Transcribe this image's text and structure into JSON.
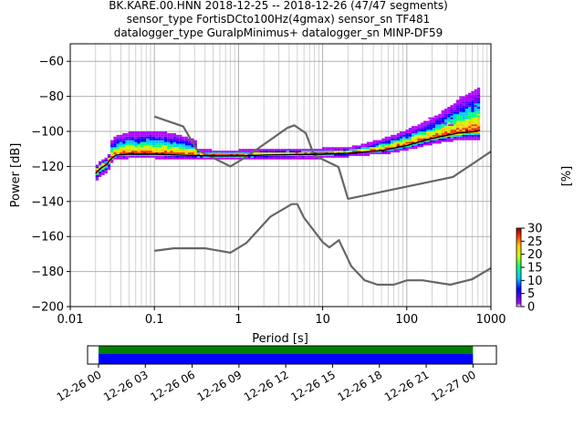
{
  "chart_data": {
    "type": "heatmap",
    "title_lines": [
      "BK.KARE.00.HNN   2018-12-25 -- 2018-12-26  (47/47 segments)",
      "sensor_type FortisDCto100Hz(4gmax) sensor_sn TF481",
      "datalogger_type GuralpMinimus+ datalogger_sn MINP-DF59"
    ],
    "xlabel": "Period [s]",
    "ylabel": "Power [dB]",
    "x_scale": "log",
    "xlim": [
      0.01,
      1000
    ],
    "ylim": [
      -200,
      -50
    ],
    "x_ticks": [
      {
        "value": 0.01,
        "label": "0.01"
      },
      {
        "value": 0.1,
        "label": "0.1"
      },
      {
        "value": 1,
        "label": "1"
      },
      {
        "value": 10,
        "label": "10"
      },
      {
        "value": 100,
        "label": "100"
      },
      {
        "value": 1000,
        "label": "1000"
      }
    ],
    "y_ticks": [
      {
        "value": -60,
        "label": "−60"
      },
      {
        "value": -80,
        "label": "−80"
      },
      {
        "value": -100,
        "label": "−100"
      },
      {
        "value": -120,
        "label": "−120"
      },
      {
        "value": -140,
        "label": "−140"
      },
      {
        "value": -160,
        "label": "−160"
      },
      {
        "value": -180,
        "label": "−180"
      },
      {
        "value": -200,
        "label": "−200"
      }
    ],
    "grid": true,
    "colorbar": {
      "label": "[%]",
      "range": [
        0,
        30
      ],
      "ticks": [
        {
          "value": 0,
          "label": "0"
        },
        {
          "value": 5,
          "label": "5"
        },
        {
          "value": 10,
          "label": "10"
        },
        {
          "value": 15,
          "label": "15"
        },
        {
          "value": 20,
          "label": "20"
        },
        {
          "value": 25,
          "label": "25"
        },
        {
          "value": 30,
          "label": "30"
        }
      ]
    },
    "noise_models": [
      {
        "points": [
          [
            0.1,
            -91.5
          ],
          [
            0.22,
            -97.2
          ],
          [
            0.32,
            -110.5
          ],
          [
            0.8,
            -120
          ],
          [
            1.2,
            -114.9
          ],
          [
            3.8,
            -98
          ],
          [
            4.6,
            -96.5
          ],
          [
            6.3,
            -101
          ],
          [
            7.9,
            -113.6
          ],
          [
            15.4,
            -120.3
          ],
          [
            20,
            -138.5
          ],
          [
            354,
            -126
          ],
          [
            1000,
            -111.5
          ]
        ]
      },
      {
        "points": [
          [
            0.1,
            -168.2
          ],
          [
            0.17,
            -166.7
          ],
          [
            0.4,
            -166.7
          ],
          [
            0.8,
            -169.2
          ],
          [
            1.24,
            -163.7
          ],
          [
            2.4,
            -148.6
          ],
          [
            4.3,
            -141.5
          ],
          [
            5,
            -141.5
          ],
          [
            6,
            -149.2
          ],
          [
            10,
            -163.2
          ],
          [
            12,
            -166.2
          ],
          [
            15.6,
            -162.1
          ],
          [
            21.9,
            -177
          ],
          [
            31.6,
            -185
          ],
          [
            45,
            -187.5
          ],
          [
            70,
            -187.5
          ],
          [
            101,
            -185
          ],
          [
            154,
            -185
          ],
          [
            328,
            -187.5
          ],
          [
            600,
            -184.4
          ],
          [
            1000,
            -178
          ]
        ]
      }
    ],
    "mean_trace": [
      [
        0.02,
        -124
      ],
      [
        0.023,
        -121
      ],
      [
        0.027,
        -119
      ],
      [
        0.03,
        -116
      ],
      [
        0.035,
        -113.5
      ],
      [
        0.05,
        -113
      ],
      [
        0.1,
        -113
      ],
      [
        0.2,
        -113.5
      ],
      [
        0.5,
        -114
      ],
      [
        1,
        -114
      ],
      [
        2,
        -113.5
      ],
      [
        4,
        -113.3
      ],
      [
        10,
        -113
      ],
      [
        20,
        -112.5
      ],
      [
        50,
        -111
      ],
      [
        100,
        -108
      ],
      [
        200,
        -104
      ],
      [
        400,
        -101
      ],
      [
        700,
        -100
      ]
    ],
    "time_coverage": {
      "tick_labels": [
        "12-26 00",
        "12-26 03",
        "12-26 06",
        "12-26 09",
        "12-26 12",
        "12-26 15",
        "12-26 18",
        "12-26 21",
        "12-27 00"
      ],
      "range_hours": [
        -0.7,
        25.5
      ],
      "data_hours": [
        0,
        24
      ]
    }
  }
}
